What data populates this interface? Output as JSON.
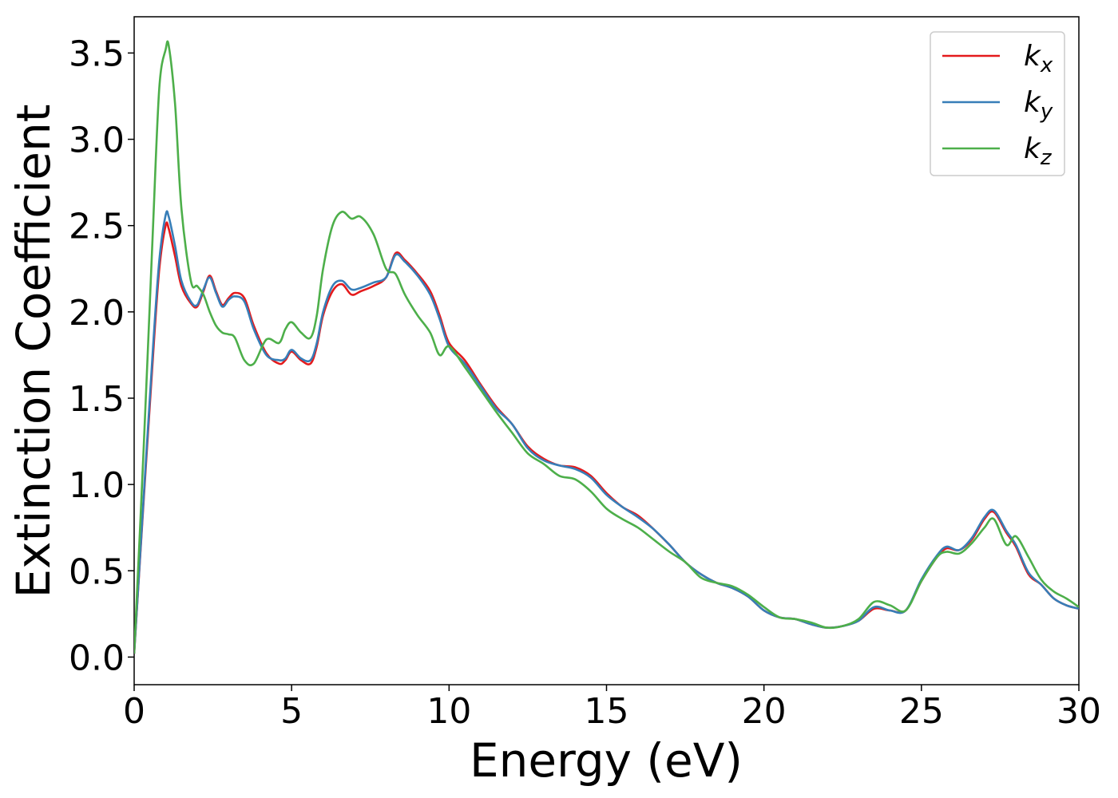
{
  "chart_data": {
    "type": "line",
    "title": "",
    "xlabel": "Energy (eV)",
    "ylabel": "Extinction Coefficient",
    "xlim": [
      0,
      30
    ],
    "ylim": [
      -0.16,
      3.71
    ],
    "xticks": [
      "0",
      "5",
      "10",
      "15",
      "20",
      "25",
      "30"
    ],
    "yticks": [
      "0.0",
      "0.5",
      "1.0",
      "1.5",
      "2.0",
      "2.5",
      "3.0",
      "3.5"
    ],
    "grid": false,
    "legend_position": "top-right",
    "series": [
      {
        "name": "k",
        "subscript": "x",
        "color": "#e41a1c",
        "x": [
          0,
          0.3,
          0.6,
          0.8,
          1.0,
          1.1,
          1.3,
          1.5,
          1.8,
          2.0,
          2.2,
          2.4,
          2.6,
          2.8,
          3.0,
          3.2,
          3.5,
          3.8,
          4.2,
          4.6,
          4.8,
          5.0,
          5.3,
          5.6,
          5.8,
          6.0,
          6.3,
          6.6,
          6.9,
          7.2,
          7.6,
          8.0,
          8.3,
          8.6,
          9.0,
          9.4,
          9.7,
          10.0,
          10.5,
          11.0,
          11.5,
          12.0,
          12.5,
          13.0,
          13.5,
          14.0,
          14.5,
          15.0,
          15.5,
          16.0,
          16.5,
          17.0,
          17.5,
          18.0,
          18.5,
          19.0,
          19.5,
          20.0,
          20.5,
          21.0,
          21.5,
          22.0,
          22.5,
          23.0,
          23.5,
          24.0,
          24.5,
          25.0,
          25.5,
          25.8,
          26.2,
          26.6,
          27.0,
          27.3,
          27.7,
          28.0,
          28.4,
          28.8,
          29.2,
          29.6,
          30.0
        ],
        "y": [
          0.02,
          0.9,
          1.75,
          2.25,
          2.5,
          2.48,
          2.32,
          2.15,
          2.05,
          2.03,
          2.12,
          2.21,
          2.12,
          2.04,
          2.08,
          2.11,
          2.08,
          1.92,
          1.76,
          1.7,
          1.72,
          1.77,
          1.72,
          1.7,
          1.8,
          1.98,
          2.12,
          2.16,
          2.1,
          2.12,
          2.15,
          2.2,
          2.34,
          2.3,
          2.22,
          2.12,
          1.98,
          1.82,
          1.72,
          1.58,
          1.45,
          1.35,
          1.22,
          1.15,
          1.11,
          1.1,
          1.05,
          0.95,
          0.87,
          0.82,
          0.74,
          0.65,
          0.55,
          0.48,
          0.43,
          0.4,
          0.35,
          0.27,
          0.23,
          0.22,
          0.19,
          0.17,
          0.18,
          0.21,
          0.28,
          0.27,
          0.27,
          0.44,
          0.58,
          0.63,
          0.62,
          0.68,
          0.8,
          0.84,
          0.72,
          0.64,
          0.48,
          0.42,
          0.34,
          0.3,
          0.28
        ]
      },
      {
        "name": "k",
        "subscript": "y",
        "color": "#377eb8",
        "x": [
          0,
          0.3,
          0.6,
          0.8,
          1.0,
          1.1,
          1.3,
          1.5,
          1.8,
          2.0,
          2.2,
          2.4,
          2.6,
          2.8,
          3.0,
          3.2,
          3.5,
          3.8,
          4.2,
          4.6,
          4.8,
          5.0,
          5.3,
          5.6,
          5.8,
          6.0,
          6.3,
          6.6,
          6.9,
          7.2,
          7.6,
          8.0,
          8.3,
          8.6,
          9.0,
          9.4,
          9.7,
          10.0,
          10.5,
          11.0,
          11.5,
          12.0,
          12.5,
          13.0,
          13.5,
          14.0,
          14.5,
          15.0,
          15.5,
          16.0,
          16.5,
          17.0,
          17.5,
          18.0,
          18.5,
          19.0,
          19.5,
          20.0,
          20.5,
          21.0,
          21.5,
          22.0,
          22.5,
          23.0,
          23.5,
          24.0,
          24.5,
          25.0,
          25.5,
          25.8,
          26.2,
          26.6,
          27.0,
          27.3,
          27.7,
          28.0,
          28.4,
          28.8,
          29.2,
          29.6,
          30.0
        ],
        "y": [
          0.02,
          0.92,
          1.8,
          2.3,
          2.56,
          2.55,
          2.38,
          2.18,
          2.06,
          2.04,
          2.13,
          2.2,
          2.11,
          2.03,
          2.07,
          2.09,
          2.06,
          1.9,
          1.75,
          1.72,
          1.73,
          1.78,
          1.73,
          1.72,
          1.82,
          2.0,
          2.15,
          2.18,
          2.13,
          2.14,
          2.17,
          2.2,
          2.33,
          2.29,
          2.21,
          2.1,
          1.96,
          1.8,
          1.7,
          1.57,
          1.44,
          1.35,
          1.21,
          1.14,
          1.11,
          1.09,
          1.04,
          0.94,
          0.87,
          0.81,
          0.74,
          0.65,
          0.55,
          0.48,
          0.43,
          0.4,
          0.35,
          0.27,
          0.23,
          0.22,
          0.19,
          0.17,
          0.18,
          0.21,
          0.29,
          0.27,
          0.27,
          0.45,
          0.59,
          0.64,
          0.62,
          0.69,
          0.81,
          0.85,
          0.73,
          0.65,
          0.49,
          0.42,
          0.34,
          0.3,
          0.28
        ]
      },
      {
        "name": "k",
        "subscript": "z",
        "color": "#4daf4a",
        "x": [
          0,
          0.3,
          0.6,
          0.8,
          1.0,
          1.1,
          1.3,
          1.5,
          1.8,
          2.0,
          2.2,
          2.4,
          2.6,
          2.8,
          3.0,
          3.2,
          3.5,
          3.8,
          4.2,
          4.6,
          4.8,
          5.0,
          5.3,
          5.6,
          5.8,
          6.0,
          6.3,
          6.6,
          6.9,
          7.2,
          7.6,
          8.0,
          8.3,
          8.6,
          9.0,
          9.4,
          9.7,
          10.0,
          10.5,
          11.0,
          11.5,
          12.0,
          12.5,
          13.0,
          13.5,
          14.0,
          14.5,
          15.0,
          15.5,
          16.0,
          16.5,
          17.0,
          17.5,
          18.0,
          18.5,
          19.0,
          19.5,
          20.0,
          20.5,
          21.0,
          21.5,
          22.0,
          22.5,
          23.0,
          23.5,
          24.0,
          24.5,
          25.0,
          25.5,
          25.8,
          26.2,
          26.6,
          27.0,
          27.3,
          27.7,
          28.0,
          28.4,
          28.8,
          29.2,
          29.6,
          30.0
        ],
        "y": [
          0.02,
          1.2,
          2.5,
          3.3,
          3.52,
          3.54,
          3.2,
          2.6,
          2.18,
          2.15,
          2.1,
          2.0,
          1.92,
          1.88,
          1.87,
          1.85,
          1.72,
          1.7,
          1.84,
          1.82,
          1.9,
          1.94,
          1.88,
          1.85,
          1.98,
          2.25,
          2.5,
          2.58,
          2.54,
          2.55,
          2.45,
          2.25,
          2.22,
          2.1,
          1.98,
          1.88,
          1.75,
          1.8,
          1.68,
          1.55,
          1.42,
          1.3,
          1.18,
          1.12,
          1.05,
          1.03,
          0.96,
          0.86,
          0.8,
          0.75,
          0.68,
          0.61,
          0.55,
          0.46,
          0.43,
          0.41,
          0.36,
          0.29,
          0.23,
          0.22,
          0.2,
          0.17,
          0.18,
          0.22,
          0.32,
          0.3,
          0.27,
          0.44,
          0.58,
          0.61,
          0.6,
          0.66,
          0.75,
          0.8,
          0.65,
          0.7,
          0.58,
          0.45,
          0.38,
          0.34,
          0.29
        ]
      }
    ]
  }
}
